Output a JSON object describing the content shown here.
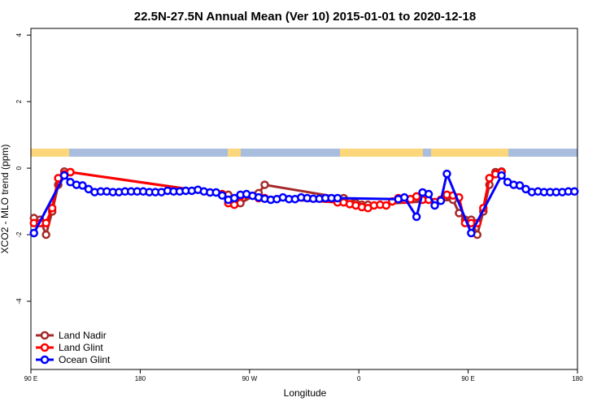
{
  "chart_data": {
    "type": "line",
    "title": "22.5N-27.5N Annual Mean (Ver 10)   2015-01-01 to 2020-12-18",
    "x_label": "Longitude",
    "y_label": "XCO2 - MLO trend (ppm)",
    "xlim": [
      90,
      540
    ],
    "ylim": [
      -6.05,
      4.2
    ],
    "xticks": [
      {
        "value": 90,
        "label": "90 E"
      },
      180,
      {
        "value": 270,
        "label": "90 W"
      },
      {
        "value": 360,
        "label": "0"
      },
      {
        "value": 450,
        "label": "90 E"
      },
      {
        "value": 540,
        "label": "180"
      }
    ],
    "yticks": [
      4,
      2,
      0,
      -2,
      -4
    ],
    "legend": "bottom-left",
    "series": [
      {
        "name": "Land Nadir",
        "color": "#a52a2a",
        "x": [
          92.5,
          97.5,
          102.5,
          107.5,
          112.5,
          117.5,
          122.5,
          252.5,
          257.5,
          262.5,
          277.5,
          282.5,
          347.5,
          352.5,
          357.5,
          362.5,
          367.5,
          437.5,
          442.5,
          447.5,
          452.5,
          457.5,
          462.5,
          467.5,
          472.5,
          477.5
        ],
        "values": [
          -1.5,
          -1.55,
          -2.0,
          -1.3,
          -0.5,
          -0.1,
          -0.12,
          -0.8,
          -1.0,
          -1.05,
          -0.75,
          -0.5,
          -0.9,
          -1.0,
          -1.05,
          -1.1,
          -1.1,
          -0.95,
          -1.35,
          -1.55,
          -1.55,
          -2.0,
          -1.3,
          -0.5,
          -0.12,
          -0.1
        ]
      },
      {
        "name": "Land Glint",
        "color": "#ff0000",
        "x": [
          92.5,
          97.5,
          102.5,
          107.5,
          112.5,
          117.5,
          122.5,
          247.5,
          252.5,
          257.5,
          262.5,
          267.5,
          277.5,
          282.5,
          342.5,
          347.5,
          352.5,
          357.5,
          362.5,
          367.5,
          372.5,
          377.5,
          382.5,
          387.5,
          392.5,
          397.5,
          402.5,
          407.5,
          412.5,
          417.5,
          422.5,
          427.5,
          432.5,
          437.5,
          442.5,
          447.5,
          452.5,
          457.5,
          462.5,
          467.5,
          472.5,
          477.5
        ],
        "values": [
          -1.65,
          -1.65,
          -1.65,
          -1.2,
          -0.3,
          -0.18,
          -0.12,
          -0.78,
          -1.05,
          -1.1,
          -0.85,
          -0.8,
          -0.9,
          -0.9,
          -1.03,
          -1.03,
          -1.08,
          -1.12,
          -1.17,
          -1.2,
          -1.12,
          -1.1,
          -1.12,
          -1.0,
          -0.9,
          -0.95,
          -0.93,
          -0.85,
          -0.95,
          -0.95,
          -1.02,
          -0.95,
          -0.8,
          -0.82,
          -0.88,
          -1.65,
          -1.65,
          -1.65,
          -1.2,
          -0.3,
          -0.18,
          -0.12
        ]
      },
      {
        "name": "Ocean Glint",
        "color": "#0000ff",
        "x": [
          92.5,
          117.5,
          122.5,
          127.5,
          132.5,
          137.5,
          142.5,
          147.5,
          152.5,
          157.5,
          162.5,
          167.5,
          172.5,
          177.5,
          182.5,
          187.5,
          192.5,
          197.5,
          202.5,
          207.5,
          212.5,
          217.5,
          222.5,
          227.5,
          232.5,
          237.5,
          242.5,
          247.5,
          252.5,
          257.5,
          262.5,
          267.5,
          272.5,
          277.5,
          282.5,
          287.5,
          292.5,
          297.5,
          302.5,
          307.5,
          312.5,
          317.5,
          322.5,
          327.5,
          332.5,
          337.5,
          342.5,
          392.5,
          397.5,
          407.5,
          412.5,
          417.5,
          422.5,
          427.5,
          432.5,
          452.5,
          477.5,
          482.5,
          487.5,
          492.5,
          497.5,
          502.5,
          507.5,
          512.5,
          517.5,
          522.5,
          527.5,
          532.5,
          537.5
        ],
        "values": [
          -1.95,
          -0.22,
          -0.42,
          -0.5,
          -0.52,
          -0.63,
          -0.72,
          -0.7,
          -0.7,
          -0.72,
          -0.72,
          -0.7,
          -0.7,
          -0.7,
          -0.7,
          -0.72,
          -0.72,
          -0.72,
          -0.68,
          -0.7,
          -0.7,
          -0.68,
          -0.68,
          -0.65,
          -0.7,
          -0.73,
          -0.73,
          -0.82,
          -0.95,
          -0.9,
          -0.8,
          -0.78,
          -0.83,
          -0.88,
          -0.92,
          -0.95,
          -0.93,
          -0.88,
          -0.93,
          -0.93,
          -0.88,
          -0.9,
          -0.92,
          -0.92,
          -0.9,
          -0.9,
          -0.9,
          -0.93,
          -0.88,
          -1.46,
          -0.73,
          -0.78,
          -1.12,
          -0.98,
          -0.17,
          -1.95,
          -0.22,
          -0.42,
          -0.5,
          -0.52,
          -0.63,
          -0.72,
          -0.7,
          -0.72,
          -0.72,
          -0.72,
          -0.72,
          -0.7,
          -0.7
        ]
      }
    ]
  }
}
